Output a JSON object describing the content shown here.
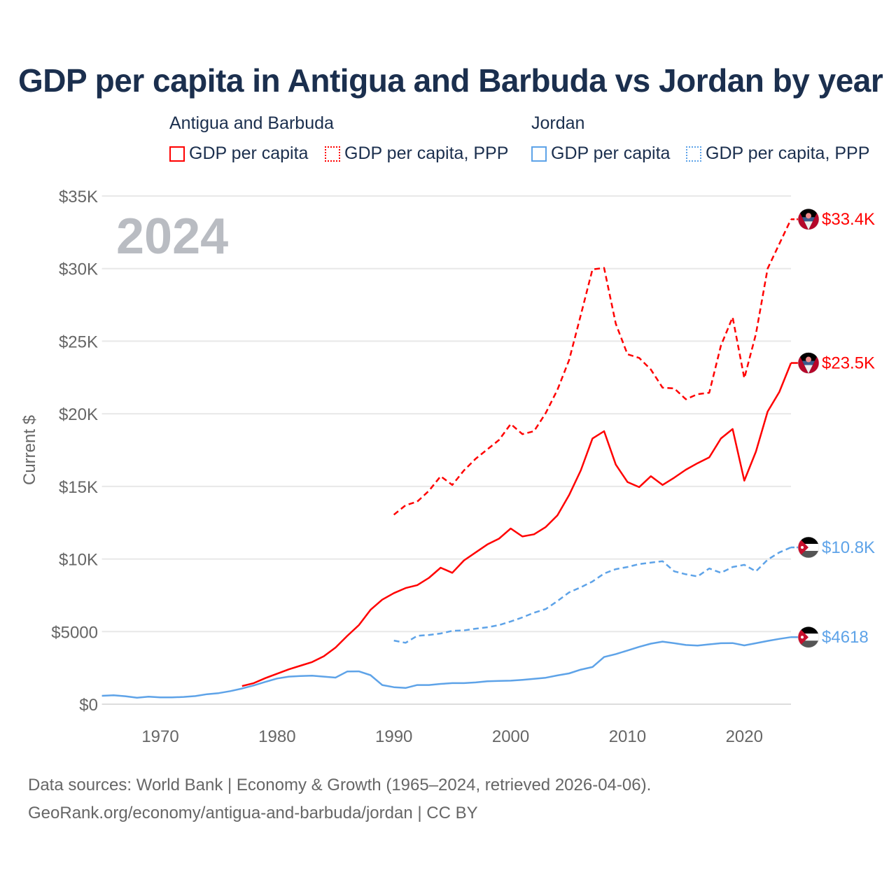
{
  "title": "GDP per capita in Antigua and Barbuda vs Jordan by year",
  "legend": {
    "groups": [
      {
        "name": "Antigua and Barbuda",
        "items": [
          "GDP per capita",
          "GDP per capita, PPP"
        ],
        "color": "#ff0000"
      },
      {
        "name": "Jordan",
        "items": [
          "GDP per capita",
          "GDP per capita, PPP"
        ],
        "color": "#5ea3e8"
      }
    ]
  },
  "footer": {
    "line1": "Data sources: World Bank | Economy & Growth (1965–2024, retrieved 2026-04-06).",
    "line2": "GeoRank.org/economy/antigua-and-barbuda/jordan | CC BY"
  },
  "chart_data": {
    "type": "line",
    "title": "GDP per capita in Antigua and Barbuda vs Jordan by year",
    "ylabel": "Current $",
    "xlabel": "",
    "year_watermark": "2024",
    "xlim": [
      1965,
      2024
    ],
    "ylim": [
      0,
      35000
    ],
    "xticks": [
      1970,
      1980,
      1990,
      2000,
      2010,
      2020
    ],
    "yticks": [
      {
        "value": 0,
        "label": "$0"
      },
      {
        "value": 5000,
        "label": "$5000"
      },
      {
        "value": 10000,
        "label": "$10K"
      },
      {
        "value": 15000,
        "label": "$15K"
      },
      {
        "value": 20000,
        "label": "$20K"
      },
      {
        "value": 25000,
        "label": "$25K"
      },
      {
        "value": 30000,
        "label": "$30K"
      },
      {
        "value": 35000,
        "label": "$35K"
      }
    ],
    "grid": true,
    "series": [
      {
        "name": "Antigua and Barbuda - GDP per capita",
        "country": "antigua",
        "color": "#ff0000",
        "dashed": false,
        "start": 1977,
        "end_label": "$23.5K",
        "values": [
          1250,
          1450,
          1800,
          2100,
          2400,
          2650,
          2900,
          3300,
          3900,
          4700,
          5450,
          6500,
          7200,
          7650,
          8000,
          8200,
          8700,
          9400,
          9050,
          9900,
          10450,
          11000,
          11400,
          12100,
          11550,
          11700,
          12200,
          13000,
          14400,
          16100,
          18300,
          18800,
          16500,
          15300,
          14950,
          15700,
          15100,
          15600,
          16150,
          16600,
          17000,
          18300,
          18950,
          15400,
          17400,
          20150,
          21500,
          23500
        ]
      },
      {
        "name": "Antigua and Barbuda - GDP per capita, PPP",
        "country": "antigua",
        "color": "#ff0000",
        "dashed": true,
        "start": 1990,
        "end_label": "$33.4K",
        "values": [
          13050,
          13700,
          13950,
          14700,
          15700,
          15100,
          16100,
          16900,
          17550,
          18200,
          19300,
          18600,
          18800,
          20050,
          21650,
          23700,
          26800,
          29950,
          30050,
          26200,
          24100,
          23850,
          23050,
          21800,
          21750,
          21000,
          21350,
          21450,
          24700,
          26650,
          22450,
          25500,
          30000,
          31700,
          33400
        ]
      },
      {
        "name": "Jordan - GDP per capita",
        "country": "jordan",
        "color": "#5ea3e8",
        "dashed": false,
        "start": 1965,
        "end_label": "$4618",
        "values": [
          580,
          610,
          550,
          450,
          520,
          470,
          470,
          500,
          560,
          690,
          760,
          900,
          1080,
          1290,
          1540,
          1770,
          1900,
          1940,
          1960,
          1900,
          1830,
          2250,
          2260,
          2000,
          1320,
          1170,
          1120,
          1320,
          1320,
          1400,
          1450,
          1450,
          1500,
          1580,
          1600,
          1620,
          1680,
          1750,
          1820,
          1980,
          2120,
          2380,
          2560,
          3250,
          3450,
          3700,
          3950,
          4170,
          4310,
          4200,
          4080,
          4040,
          4120,
          4200,
          4210,
          4050,
          4200,
          4360,
          4500,
          4618
        ]
      },
      {
        "name": "Jordan - GDP per capita, PPP",
        "country": "jordan",
        "color": "#5ea3e8",
        "dashed": true,
        "start": 1990,
        "end_label": "$10.8K",
        "values": [
          4380,
          4230,
          4710,
          4770,
          4870,
          5050,
          5080,
          5200,
          5300,
          5450,
          5700,
          5980,
          6300,
          6550,
          7100,
          7700,
          8050,
          8450,
          9000,
          9300,
          9450,
          9650,
          9750,
          9850,
          9150,
          8950,
          8800,
          9350,
          9050,
          9450,
          9600,
          9150,
          9950,
          10450,
          10800
        ]
      }
    ]
  }
}
